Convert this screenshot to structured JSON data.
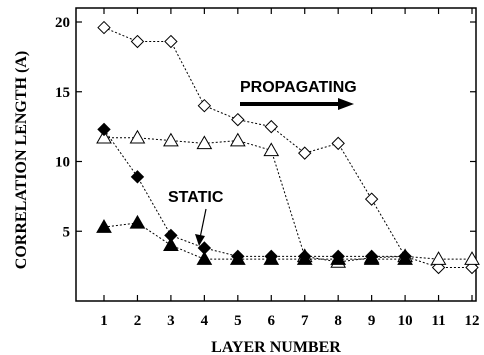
{
  "chart_data": {
    "type": "line",
    "xlabel": "LAYER NUMBER",
    "ylabel": "CORRELATION LENGTH (A)",
    "xlim": [
      1,
      12
    ],
    "ylim": [
      0,
      20
    ],
    "xticks": [
      1,
      2,
      3,
      4,
      5,
      6,
      7,
      8,
      9,
      10,
      11,
      12
    ],
    "yticks": [
      5,
      10,
      15,
      20
    ],
    "grid": false,
    "series": [
      {
        "marker": "diamond-open",
        "x": [
          1,
          2,
          3,
          4,
          5,
          6,
          7,
          8,
          9,
          10,
          11,
          12
        ],
        "y": [
          19.6,
          18.6,
          18.6,
          14.0,
          13.0,
          12.5,
          10.6,
          11.3,
          7.3,
          3.2,
          2.4,
          2.4
        ]
      },
      {
        "marker": "triangle-open",
        "x": [
          1,
          2,
          3,
          4,
          5,
          6,
          7,
          8,
          9,
          10,
          11,
          12
        ],
        "y": [
          11.7,
          11.7,
          11.5,
          11.3,
          11.5,
          10.8,
          3.2,
          2.8,
          3.1,
          3.2,
          3.0,
          3.0
        ]
      },
      {
        "marker": "diamond-filled",
        "x": [
          1,
          2,
          3,
          4,
          5,
          6,
          7,
          8,
          9,
          10
        ],
        "y": [
          12.3,
          8.9,
          4.7,
          3.8,
          3.2,
          3.2,
          3.2,
          3.2,
          3.2,
          3.2
        ]
      },
      {
        "marker": "triangle-filled",
        "x": [
          1,
          2,
          3,
          4,
          5,
          6,
          7,
          8,
          9,
          10
        ],
        "y": [
          5.3,
          5.6,
          4.0,
          3.0,
          3.0,
          3.0,
          3.0,
          3.0,
          3.0,
          3.0
        ]
      }
    ],
    "annotations": [
      {
        "text": "PROPAGATING",
        "arrow": "right"
      },
      {
        "text": "STATIC",
        "arrow": "down"
      }
    ]
  }
}
